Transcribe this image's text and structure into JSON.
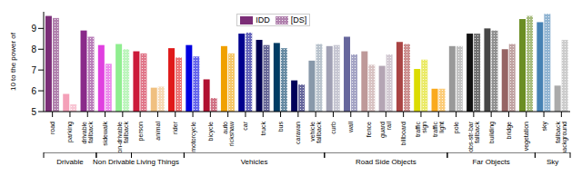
{
  "chart_data": {
    "type": "bar",
    "y_label": "10 to the power of",
    "categories": [
      "road",
      "parking",
      "drivable fallback",
      "sidewalk",
      "non-drivable fallback",
      "person",
      "animal",
      "rider",
      "motorcycle",
      "bicycle",
      "auto rickshaw",
      "car",
      "truck",
      "bus",
      "caravan",
      "vehicle fallback",
      "curb",
      "wall",
      "fence",
      "guard rail",
      "billboard",
      "traffic sign",
      "traffic light",
      "pole",
      "obs-str-bar fallback",
      "building",
      "bridge",
      "vegetation",
      "sky",
      "fallback background"
    ],
    "series": [
      {
        "name": "IDD",
        "color": "#7b2d77",
        "values": [
          9.6,
          5.85,
          8.9,
          8.2,
          8.25,
          7.9,
          6.15,
          8.05,
          8.2,
          6.55,
          8.15,
          8.75,
          8.45,
          8.3,
          6.5,
          7.45,
          8.15,
          8.6,
          7.9,
          7.2,
          8.35,
          7.05,
          6.1,
          8.15,
          8.75,
          9.0,
          8.0,
          9.45,
          9.3,
          6.25
        ],
        "line_style": "solid"
      },
      {
        "name": "[DS]",
        "color": "#7b2d77",
        "values": [
          9.5,
          5.35,
          8.6,
          7.3,
          8.0,
          7.8,
          6.2,
          7.6,
          7.65,
          5.65,
          7.8,
          8.8,
          8.2,
          8.05,
          6.3,
          8.25,
          8.2,
          7.75,
          7.25,
          7.75,
          8.25,
          7.5,
          6.1,
          8.15,
          8.75,
          8.9,
          8.25,
          9.6,
          9.7,
          8.45
        ],
        "line_style": "dotted"
      }
    ],
    "colors": [
      "#7b2d77",
      "#f4a0b8",
      "#8a2a8a",
      "#e040e0",
      "#90ee90",
      "#cc1a3a",
      "#f0c080",
      "#e01a1a",
      "#0000e0",
      "#b01030",
      "#f0a000",
      "#00008e",
      "#000050",
      "#003c64",
      "#00005a",
      "#8899aa",
      "#a0a0b4",
      "#66669c",
      "#be9999",
      "#b4a5b4",
      "#aa4444",
      "#dcdc00",
      "#faaa1e",
      "#999999",
      "#111111",
      "#464646",
      "#966464",
      "#6b8e23",
      "#4682b4",
      "#aaaaaa"
    ],
    "groups": [
      {
        "label": "Drivable",
        "categories": [
          "road",
          "parking",
          "drivable fallback"
        ]
      },
      {
        "label": "Non Drivable",
        "categories": [
          "sidewalk",
          "non-drivable fallback"
        ]
      },
      {
        "label": "Living Things",
        "categories": [
          "person",
          "animal",
          "rider"
        ]
      },
      {
        "label": "Vehicles",
        "categories": [
          "motorcycle",
          "bicycle",
          "auto rickshaw",
          "car",
          "truck",
          "bus",
          "caravan",
          "vehicle fallback"
        ]
      },
      {
        "label": "Road Side Objects",
        "categories": [
          "curb",
          "wall",
          "fence",
          "guard rail",
          "billboard",
          "traffic sign",
          "traffic light"
        ]
      },
      {
        "label": "Far Objects",
        "categories": [
          "pole",
          "obs-str-bar fallback",
          "building",
          "bridge",
          "vegetation"
        ]
      },
      {
        "label": "Sky",
        "categories": [
          "sky",
          "fallback background"
        ]
      }
    ],
    "ylim": [
      5,
      9.8
    ],
    "yticks": [
      5,
      6,
      7,
      8,
      9
    ],
    "legend": "top"
  }
}
